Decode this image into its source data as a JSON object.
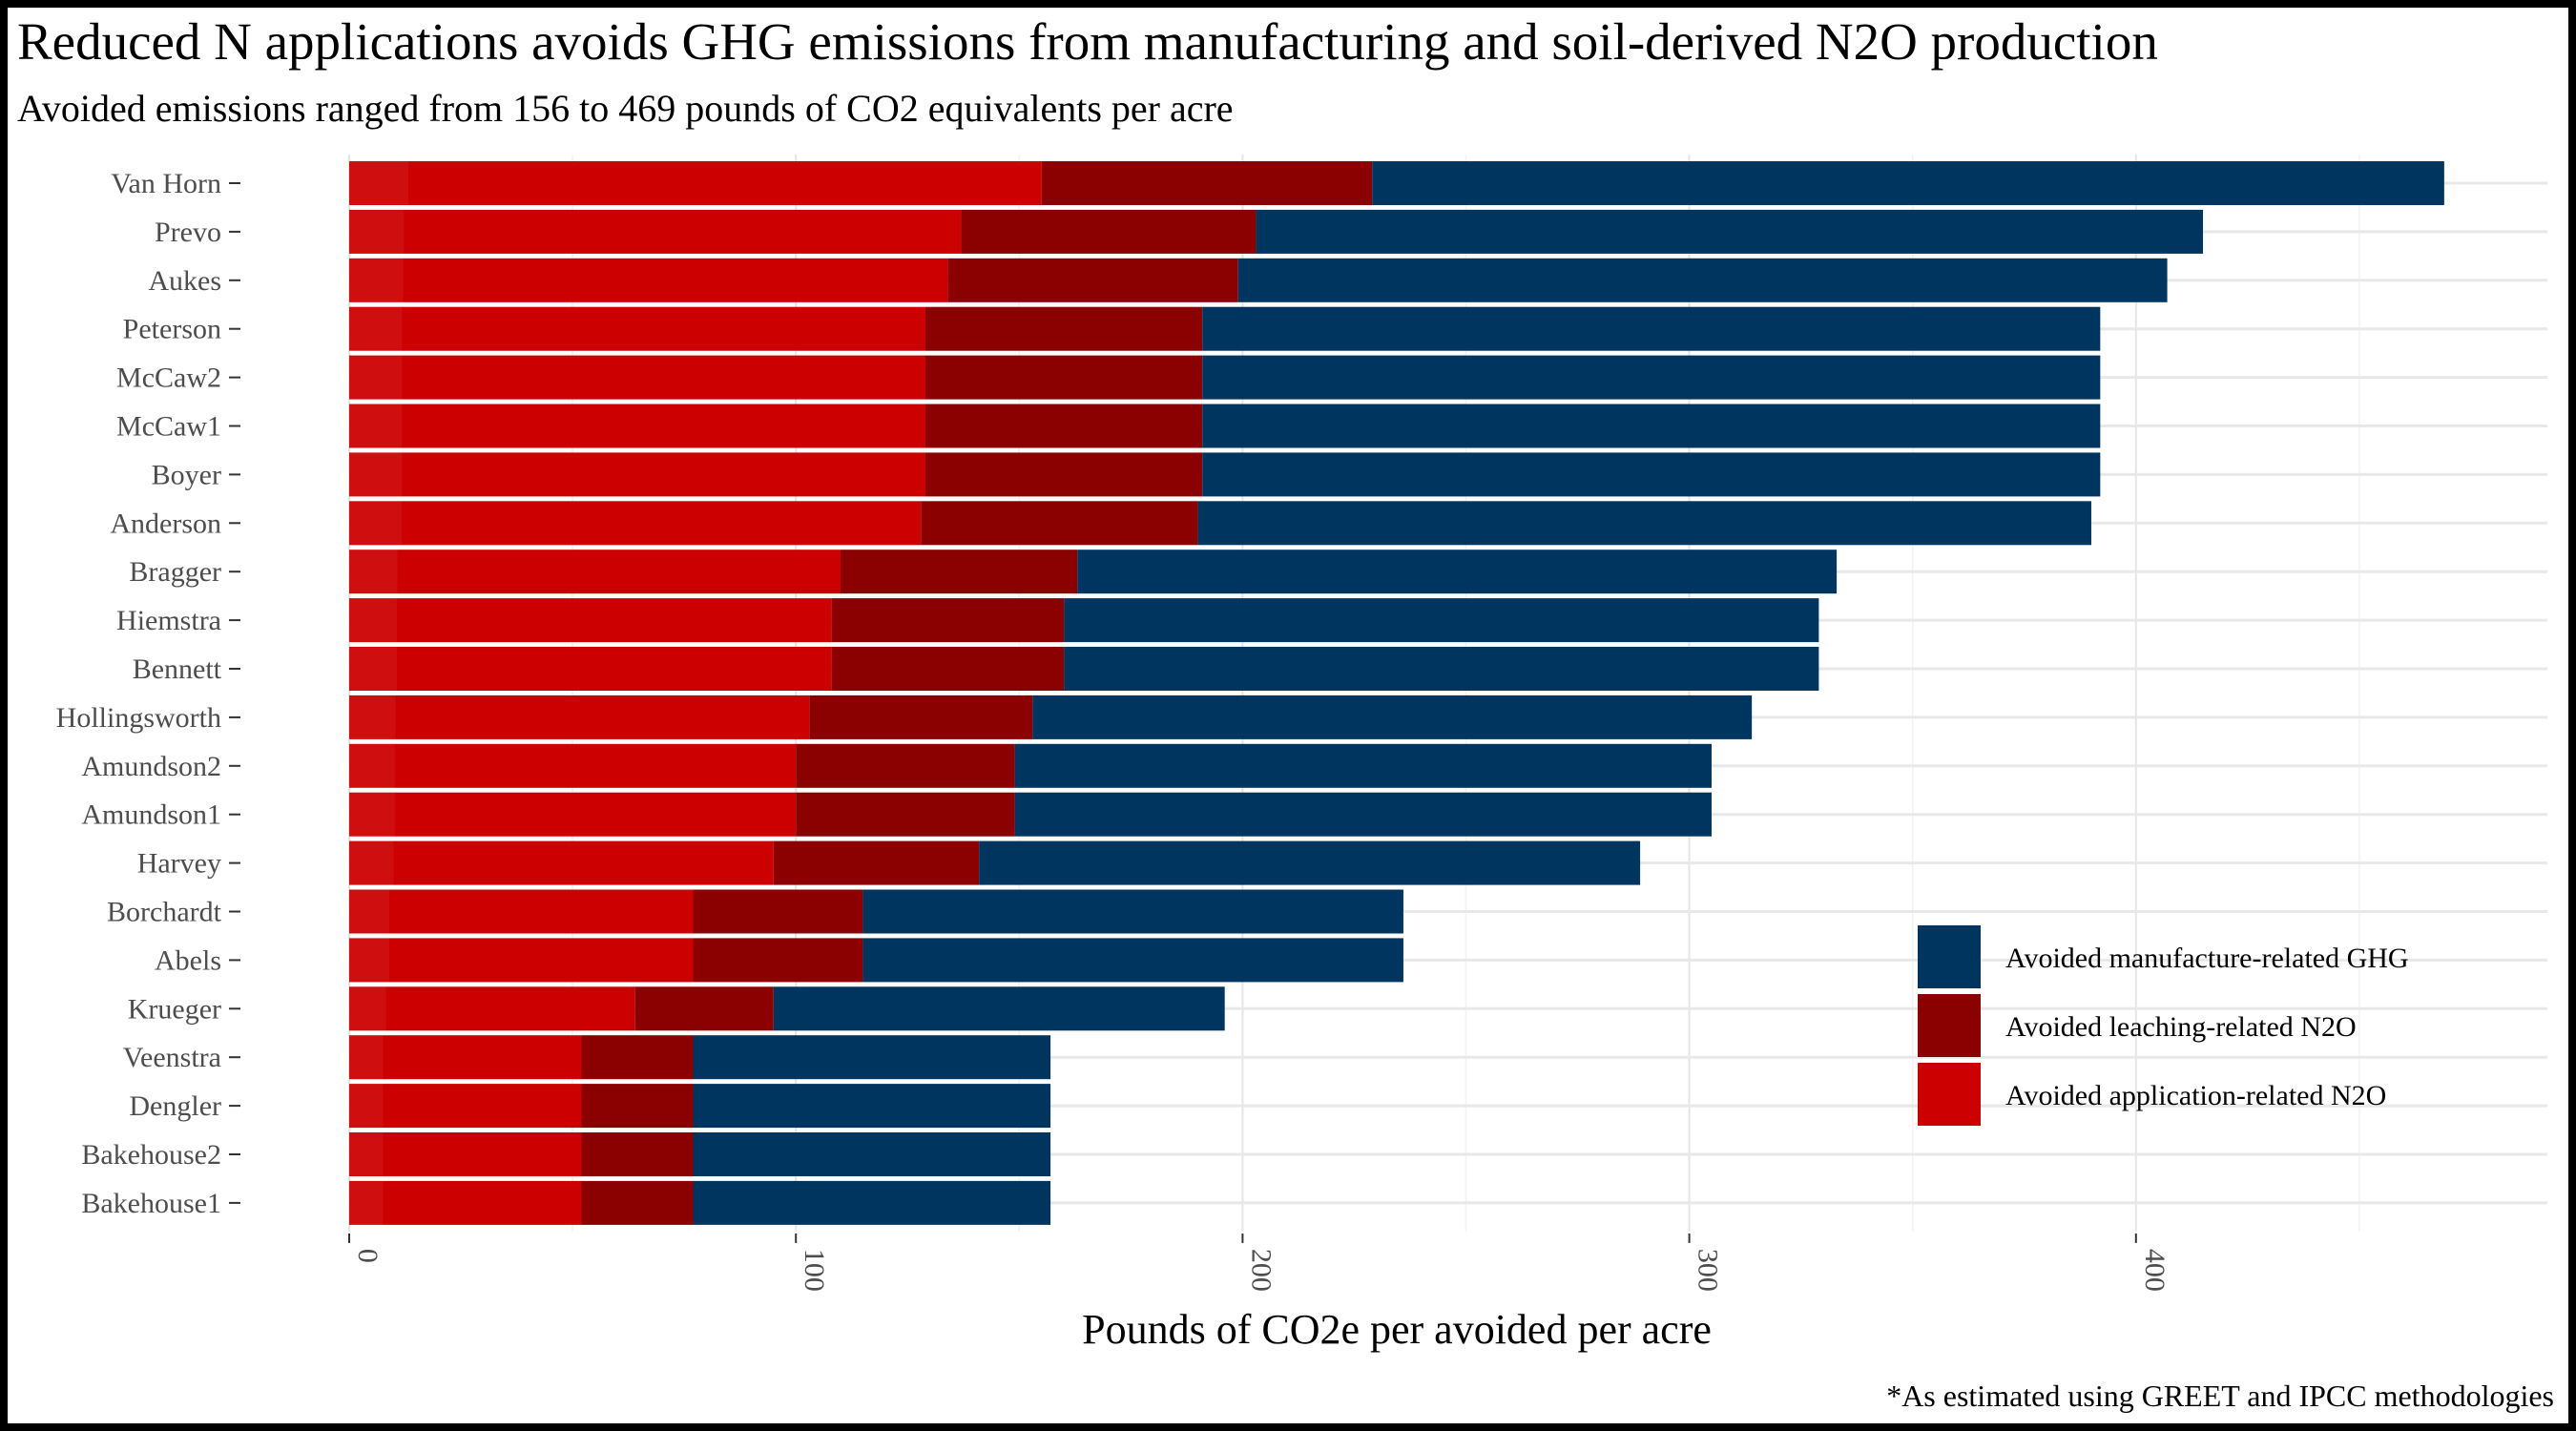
{
  "chart_data": {
    "type": "bar",
    "orientation": "horizontal",
    "stacked": true,
    "title": "Reduced N applications avoids GHG emissions from manufacturing and soil-derived N2O production",
    "subtitle": "Avoided emissions ranged from 156 to 469 pounds of CO2 equivalents per acre",
    "xlabel": "Pounds of CO2e per avoided per acre",
    "ylabel": "",
    "caption": "*As estimated using GREET and IPCC methodologies",
    "xlim": [
      0,
      469
    ],
    "xticks": [
      0,
      100,
      200,
      300,
      400
    ],
    "grid": true,
    "legend_position": "right",
    "categories": [
      "Van Horn",
      "Prevo",
      "Aukes",
      "Peterson",
      "McCaw2",
      "McCaw1",
      "Boyer",
      "Anderson",
      "Bragger",
      "Hiemstra",
      "Bennett",
      "Hollingsworth",
      "Amundson2",
      "Amundson1",
      "Harvey",
      "Borchardt",
      "Abels",
      "Krueger",
      "Veenstra",
      "Dengler",
      "Bakehouse2",
      "Bakehouse1"
    ],
    "series": [
      {
        "name": "Avoided application-related N2O",
        "color": "#cc0000",
        "values": [
          155,
          137,
          134,
          129,
          129,
          129,
          129,
          128,
          110,
          108,
          108,
          103,
          100,
          100,
          95,
          77,
          77,
          64,
          52,
          52,
          52,
          52
        ]
      },
      {
        "name": "Avoided leaching-related N2O",
        "color": "#8b0000",
        "values": [
          74,
          66,
          65,
          62,
          62,
          62,
          62,
          62,
          53,
          52,
          52,
          50,
          49,
          49,
          46,
          38,
          38,
          31,
          25,
          25,
          25,
          25
        ]
      },
      {
        "name": "Avoided manufacture-related GHG",
        "color": "#003560",
        "values": [
          240,
          212,
          208,
          201,
          201,
          201,
          201,
          200,
          170,
          169,
          169,
          161,
          156,
          156,
          148,
          121,
          121,
          101,
          80,
          80,
          80,
          80
        ]
      }
    ],
    "legend_order": [
      "Avoided manufacture-related GHG",
      "Avoided leaching-related N2O",
      "Avoided application-related N2O"
    ]
  }
}
